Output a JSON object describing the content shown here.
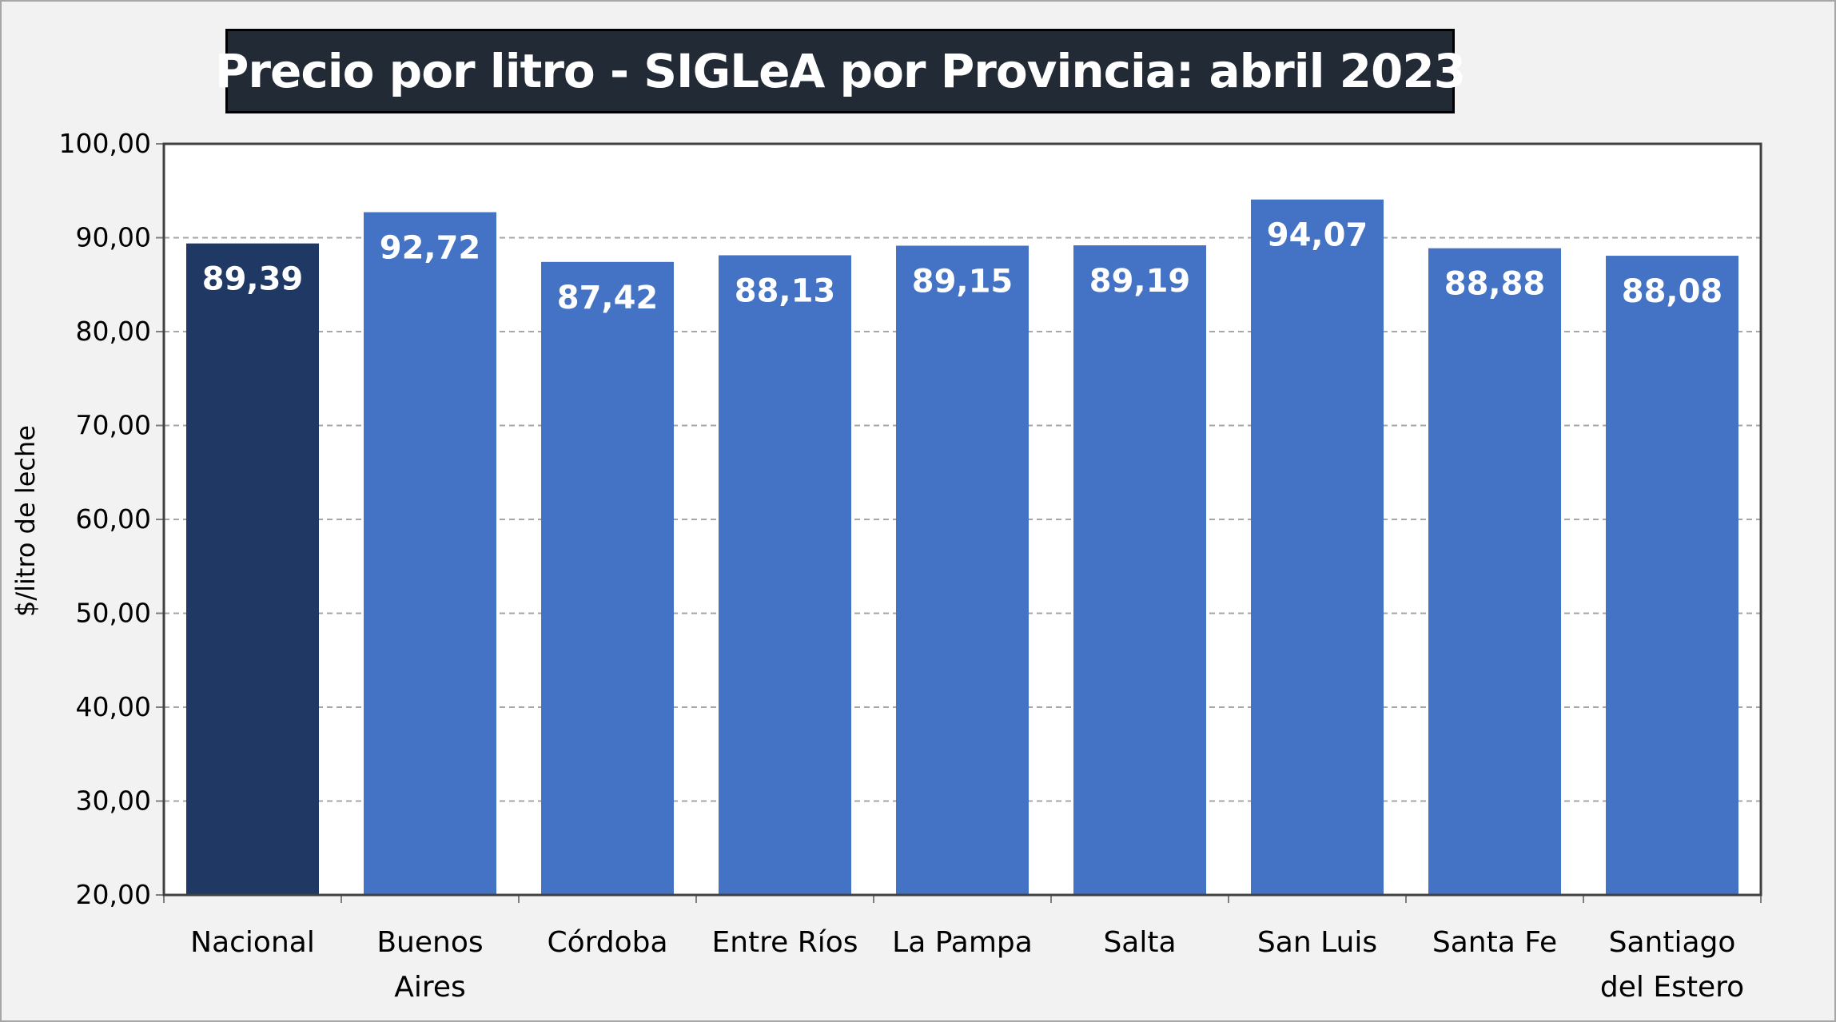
{
  "chart_data": {
    "type": "bar",
    "title": "Precio por litro - SIGLeA por Provincia: abril 2023",
    "xlabel": "",
    "ylabel": "$/litro de leche",
    "ylim": [
      20,
      100
    ],
    "yticks": [
      "20,00",
      "30,00",
      "40,00",
      "50,00",
      "60,00",
      "70,00",
      "80,00",
      "90,00",
      "100,00"
    ],
    "categories": [
      [
        "Nacional"
      ],
      [
        "Buenos",
        "Aires"
      ],
      [
        "Córdoba"
      ],
      [
        "Entre Ríos"
      ],
      [
        "La Pampa"
      ],
      [
        "Salta"
      ],
      [
        "San Luis"
      ],
      [
        "Santa Fe"
      ],
      [
        "Santiago",
        "del Estero"
      ]
    ],
    "values": [
      89.39,
      92.72,
      87.42,
      88.13,
      89.15,
      89.19,
      94.07,
      88.88,
      88.08
    ],
    "data_labels": [
      "89,39",
      "92,72",
      "87,42",
      "88,13",
      "89,15",
      "89,19",
      "94,07",
      "88,88",
      "88,08"
    ],
    "grid": true,
    "colors": {
      "highlight": "#203864",
      "bar": "#4472c4",
      "data_label": "#ffffff",
      "grid": "#a6a6a6",
      "title_bg": "#222a35"
    }
  }
}
